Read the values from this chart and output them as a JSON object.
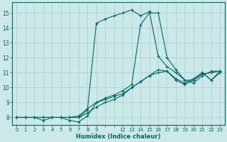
{
  "xlabel": "Humidex (Indice chaleur)",
  "bg_color": "#cce8e8",
  "line_color": "#006868",
  "grid_color": "#aacece",
  "xlim": [
    -0.5,
    23.5
  ],
  "ylim": [
    7.5,
    15.7
  ],
  "yticks": [
    8,
    9,
    10,
    11,
    12,
    13,
    14,
    15
  ],
  "xtick_labels": [
    "0",
    "1",
    "2",
    "3",
    "4",
    "5",
    "6",
    "7",
    "8",
    "9",
    "12",
    "13",
    "14",
    "15",
    "16",
    "17",
    "18",
    "19",
    "20",
    "21",
    "22",
    "23"
  ],
  "xtick_positions": [
    0,
    1,
    2,
    3,
    4,
    5,
    6,
    7,
    8,
    9,
    12,
    13,
    14,
    15,
    16,
    17,
    18,
    19,
    20,
    21,
    22,
    23
  ],
  "lines": [
    {
      "x": [
        0,
        1,
        2,
        3,
        4,
        5,
        6,
        7,
        8,
        9,
        10,
        11,
        12,
        13,
        14,
        15,
        16,
        17,
        18,
        19,
        20,
        21,
        22,
        23
      ],
      "y": [
        8.0,
        8.0,
        8.0,
        8.0,
        8.0,
        8.0,
        8.0,
        8.0,
        8.3,
        8.7,
        9.0,
        9.2,
        9.5,
        10.0,
        10.4,
        10.8,
        11.0,
        11.1,
        10.5,
        10.2,
        10.5,
        10.9,
        11.0,
        11.1
      ]
    },
    {
      "x": [
        0,
        1,
        2,
        3,
        4,
        5,
        6,
        7,
        8,
        9,
        10,
        11,
        12,
        13,
        14,
        15,
        16,
        17,
        18,
        19,
        20,
        21,
        22,
        23
      ],
      "y": [
        8.0,
        8.0,
        8.0,
        8.0,
        8.0,
        8.0,
        7.8,
        7.7,
        8.1,
        9.0,
        9.3,
        9.5,
        9.8,
        10.2,
        14.2,
        15.0,
        15.0,
        12.0,
        11.2,
        10.5,
        10.5,
        11.0,
        10.5,
        11.0
      ]
    },
    {
      "x": [
        0,
        1,
        2,
        3,
        4,
        5,
        6,
        7,
        8,
        9,
        10,
        11,
        12,
        13,
        14,
        15,
        16,
        17,
        18,
        19,
        20,
        21,
        22,
        23
      ],
      "y": [
        8.0,
        8.0,
        8.0,
        8.0,
        8.0,
        8.0,
        8.0,
        8.0,
        8.5,
        14.3,
        14.6,
        14.8,
        15.0,
        15.2,
        14.8,
        15.1,
        12.1,
        11.4,
        11.0,
        10.5,
        10.3,
        10.8,
        11.1,
        11.1
      ]
    },
    {
      "x": [
        0,
        1,
        2,
        3,
        4,
        5,
        6,
        7,
        8,
        9,
        10,
        11,
        12,
        13,
        14,
        15,
        16,
        17,
        18,
        19,
        20,
        21,
        22,
        23
      ],
      "y": [
        8.0,
        8.0,
        8.0,
        7.8,
        8.0,
        8.0,
        8.0,
        8.1,
        8.6,
        9.0,
        9.2,
        9.4,
        9.6,
        10.0,
        10.4,
        10.8,
        11.2,
        11.1,
        10.6,
        10.3,
        10.6,
        11.0,
        10.5,
        11.1
      ]
    }
  ]
}
